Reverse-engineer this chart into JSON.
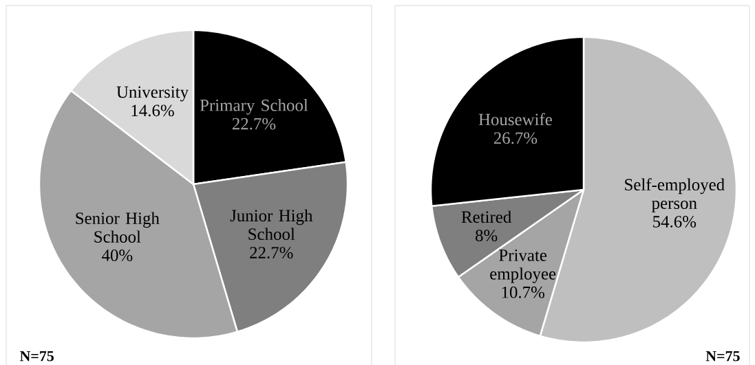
{
  "chart_data": [
    {
      "type": "pie",
      "categories": [
        "Primary School",
        "Junior High School",
        "Senior High School",
        "University"
      ],
      "values": [
        22.7,
        22.7,
        40,
        14.6
      ],
      "colors": [
        "#000000",
        "#7f7f7f",
        "#a5a5a5",
        "#d9d9d9"
      ],
      "value_labels": [
        "22.7%",
        "22.7%",
        "40%",
        "14.6%"
      ],
      "annotations": [
        "N=75"
      ]
    },
    {
      "type": "pie",
      "categories": [
        "Self-employed person",
        "Private employee",
        "Retired",
        "Housewife"
      ],
      "values": [
        54.6,
        10.7,
        8,
        26.7
      ],
      "colors": [
        "#bfbfbf",
        "#a5a5a5",
        "#7f7f7f",
        "#000000"
      ],
      "value_labels": [
        "54.6%",
        "10.7%",
        "8%",
        "26.7%"
      ],
      "annotations": [
        "N=75"
      ]
    }
  ]
}
